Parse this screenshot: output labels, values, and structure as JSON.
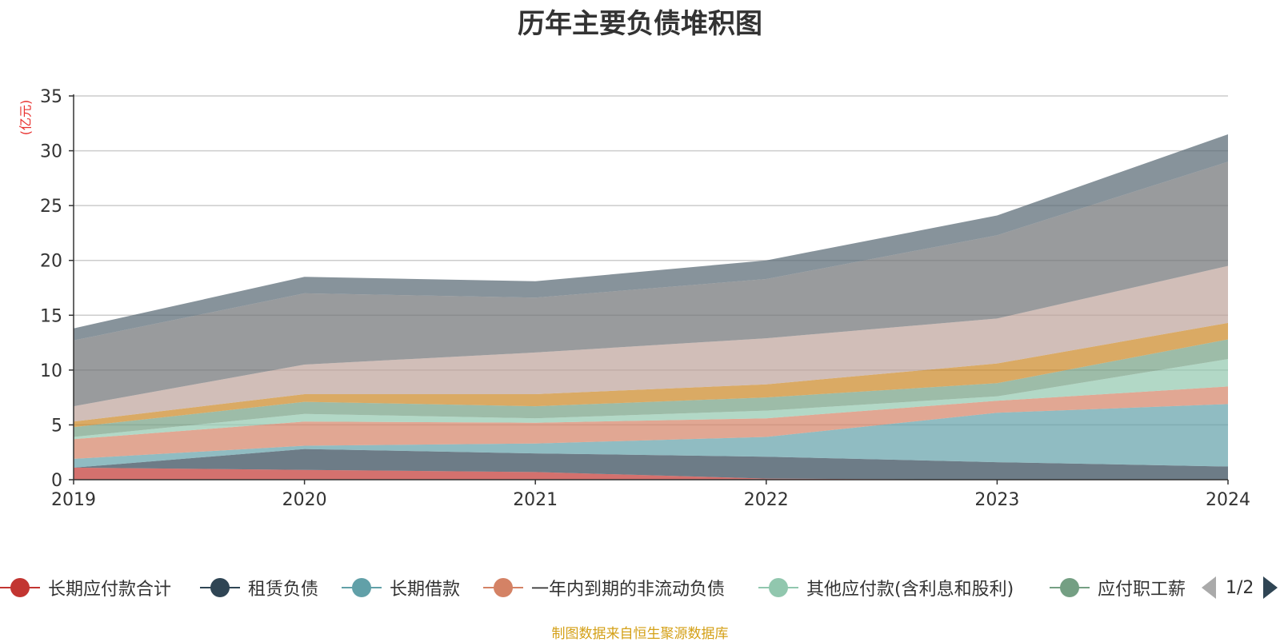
{
  "title": "历年主要负债堆积图",
  "unit_label": "(亿元)",
  "source": "制图数据来自恒生聚源数据库",
  "legend_page": "1/2",
  "chart_data": {
    "type": "area",
    "stacked": true,
    "x": [
      "2019",
      "2020",
      "2021",
      "2022",
      "2023",
      "2024"
    ],
    "ylim": [
      0,
      35
    ],
    "yticks": [
      0,
      5,
      10,
      15,
      20,
      25,
      30,
      35
    ],
    "grid": true,
    "legend_position": "bottom",
    "series": [
      {
        "name": "长期应付款合计",
        "color": "#c23531",
        "values": [
          1.1,
          0.9,
          0.7,
          0.1,
          0.0,
          0.0
        ]
      },
      {
        "name": "租赁负债",
        "color": "#2f4554",
        "values": [
          0.0,
          1.9,
          1.7,
          2.0,
          1.6,
          1.2
        ]
      },
      {
        "name": "长期借款",
        "color": "#61a0a8",
        "values": [
          0.8,
          0.3,
          0.9,
          1.8,
          4.5,
          5.7
        ]
      },
      {
        "name": "一年内到期的非流动负债",
        "color": "#d48265",
        "values": [
          1.8,
          2.2,
          1.9,
          1.7,
          1.1,
          1.6
        ]
      },
      {
        "name": "其他应付款(含利息和股利)",
        "color": "#91c7ae",
        "values": [
          0.2,
          0.7,
          0.4,
          0.7,
          0.4,
          2.5
        ]
      },
      {
        "name": "应付职工薪酬",
        "color": "#749f83",
        "values": [
          0.9,
          1.1,
          1.1,
          1.2,
          1.2,
          1.8
        ]
      },
      {
        "name": "",
        "color": "#ca8622",
        "values": [
          0.5,
          0.7,
          1.1,
          1.2,
          1.8,
          1.5
        ]
      },
      {
        "name": "",
        "color": "#bda29a",
        "values": [
          1.4,
          2.7,
          3.8,
          4.2,
          4.1,
          5.2
        ]
      },
      {
        "name": "",
        "color": "#6e7074",
        "values": [
          6.0,
          6.5,
          5.0,
          5.4,
          7.6,
          9.5
        ]
      },
      {
        "name": "",
        "color": "#546570",
        "values": [
          1.1,
          1.5,
          1.5,
          1.7,
          1.8,
          2.5
        ]
      }
    ]
  }
}
